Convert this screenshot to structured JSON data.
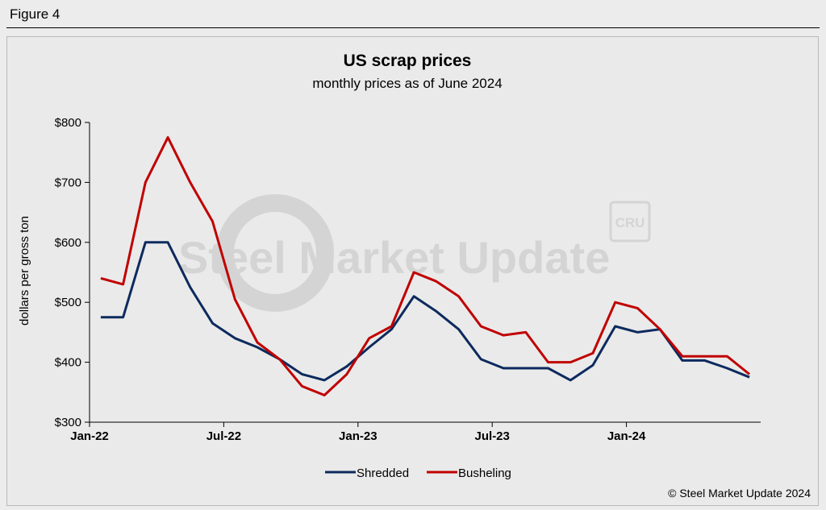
{
  "figure_label": "Figure 4",
  "watermark": {
    "text": "Steel Market Update",
    "badge": "CRU"
  },
  "copyright": "© Steel Market Update 2024",
  "colors": {
    "shredded": "#0d2a5e",
    "busheling": "#c00000",
    "axis": "#000000"
  },
  "chart_data": {
    "type": "line",
    "title": "US scrap prices",
    "subtitle": "monthly prices as of June 2024",
    "ylabel": "dollars per  gross ton",
    "xlabel": "",
    "ylim": [
      300,
      800
    ],
    "yticks": [
      300,
      400,
      500,
      600,
      700,
      800
    ],
    "ytick_labels": [
      "$300",
      "$400",
      "$500",
      "$600",
      "$700",
      "$800"
    ],
    "x": [
      "Jan-22",
      "Feb-22",
      "Mar-22",
      "Apr-22",
      "May-22",
      "Jun-22",
      "Jul-22",
      "Aug-22",
      "Sep-22",
      "Oct-22",
      "Nov-22",
      "Dec-22",
      "Jan-23",
      "Feb-23",
      "Mar-23",
      "Apr-23",
      "May-23",
      "Jun-23",
      "Jul-23",
      "Aug-23",
      "Sep-23",
      "Oct-23",
      "Nov-23",
      "Dec-23",
      "Jan-24",
      "Feb-24",
      "Mar-24",
      "Apr-24",
      "May-24",
      "Jun-24"
    ],
    "xtick_labels": [
      "Jan-22",
      "Jul-22",
      "Jan-23",
      "Jul-23",
      "Jan-24"
    ],
    "legend_position": "bottom",
    "grid": false,
    "series": [
      {
        "name": "Shredded",
        "color": "#0d2a5e",
        "values": [
          475,
          475,
          600,
          600,
          525,
          465,
          440,
          425,
          405,
          380,
          370,
          393,
          425,
          455,
          510,
          485,
          455,
          405,
          390,
          390,
          390,
          370,
          395,
          460,
          450,
          455,
          403,
          403,
          390,
          375
        ]
      },
      {
        "name": "Busheling",
        "color": "#c00000",
        "values": [
          540,
          530,
          700,
          775,
          700,
          635,
          505,
          433,
          405,
          360,
          345,
          380,
          440,
          460,
          550,
          535,
          510,
          460,
          445,
          450,
          400,
          400,
          415,
          500,
          490,
          455,
          410,
          410,
          410,
          380
        ]
      }
    ]
  }
}
